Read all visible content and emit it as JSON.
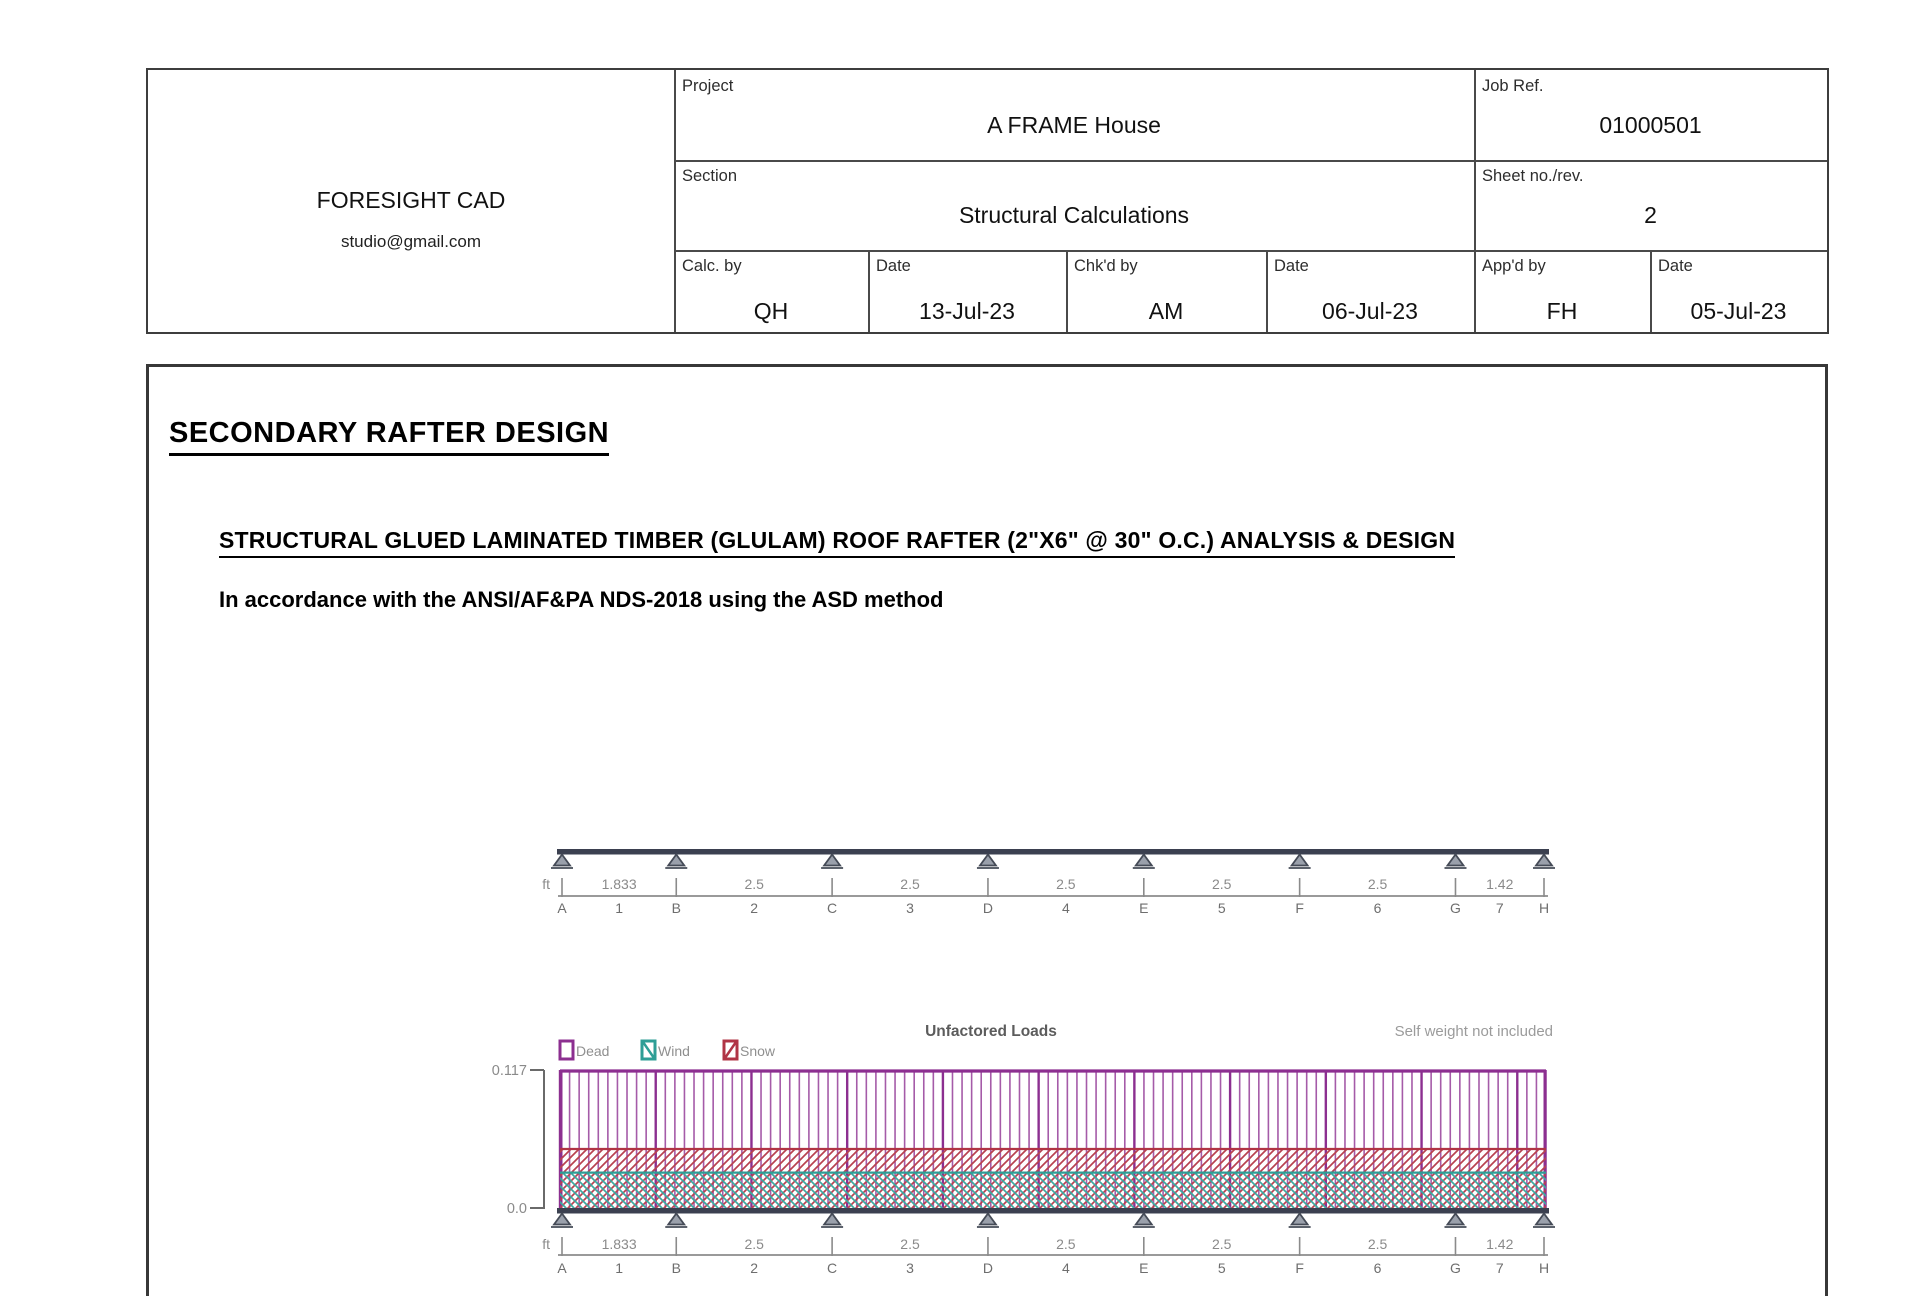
{
  "header": {
    "company": {
      "name": "FORESIGHT CAD",
      "email": "studio@gmail.com"
    },
    "project": {
      "label": "Project",
      "value": "A FRAME House"
    },
    "job_ref": {
      "label": "Job Ref.",
      "value": "01000501"
    },
    "section": {
      "label": "Section",
      "value": "Structural Calculations"
    },
    "sheet": {
      "label": "Sheet no./rev.",
      "value": "2"
    },
    "calc_by": {
      "label": "Calc. by",
      "value": "QH"
    },
    "calc_date": {
      "label": "Date",
      "value": "13-Jul-23"
    },
    "chkd_by": {
      "label": "Chk'd by",
      "value": "AM"
    },
    "chkd_date": {
      "label": "Date",
      "value": "06-Jul-23"
    },
    "appd_by": {
      "label": "App'd by",
      "value": "FH"
    },
    "appd_date": {
      "label": "Date",
      "value": "05-Jul-23"
    }
  },
  "content": {
    "title": "SECONDARY RAFTER DESIGN",
    "subtitle": "STRUCTURAL GLUED LAMINATED TIMBER (GLULAM) ROOF RAFTER (2\"X6\" @ 30\" O.C.) ANALYSIS & DESIGN",
    "standard": "In accordance with the ANSI/AF&PA NDS-2018 using the ASD method"
  },
  "chart_data": {
    "type": "beam-load-diagram",
    "unit": "ft",
    "spans": [
      1.833,
      2.5,
      2.5,
      2.5,
      2.5,
      2.5,
      1.42
    ],
    "span_length_labels": [
      "1.833",
      "2.5",
      "2.5",
      "2.5",
      "2.5",
      "2.5",
      "1.42"
    ],
    "span_labels": [
      "1",
      "2",
      "3",
      "4",
      "5",
      "6",
      "7"
    ],
    "node_labels": [
      "A",
      "B",
      "C",
      "D",
      "E",
      "F",
      "G",
      "H"
    ],
    "loads": {
      "title": "Unfactored Loads",
      "note": "Self weight not included",
      "ymax": 0.117,
      "ymax_label": "0.117",
      "ymin_label": "0.0",
      "series": [
        {
          "name": "Dead",
          "value": 0.117,
          "hatch": "vertical",
          "color": "#8C2F90",
          "hatch_color": "#A55BA8"
        },
        {
          "name": "Wind",
          "value": 0.03,
          "hatch": "diag-down",
          "color": "#2E9E96",
          "hatch_color": "#3BA8A0"
        },
        {
          "name": "Snow",
          "value": 0.05,
          "hatch": "diag-up",
          "color": "#B03445",
          "hatch_color": "#B84250"
        }
      ]
    },
    "colors": {
      "beam": "#3B4050",
      "support_fill": "#9AA0AB",
      "support_stroke": "#454B57",
      "dim_line": "#8B8B8B",
      "dim_text": "#8A8A8A",
      "node_text": "#6E6E6E",
      "title_text": "#5C5C5C",
      "note_text": "#9B9B9B",
      "legend_text": "#8F8F8F",
      "axis": "#6A6A6A"
    }
  }
}
